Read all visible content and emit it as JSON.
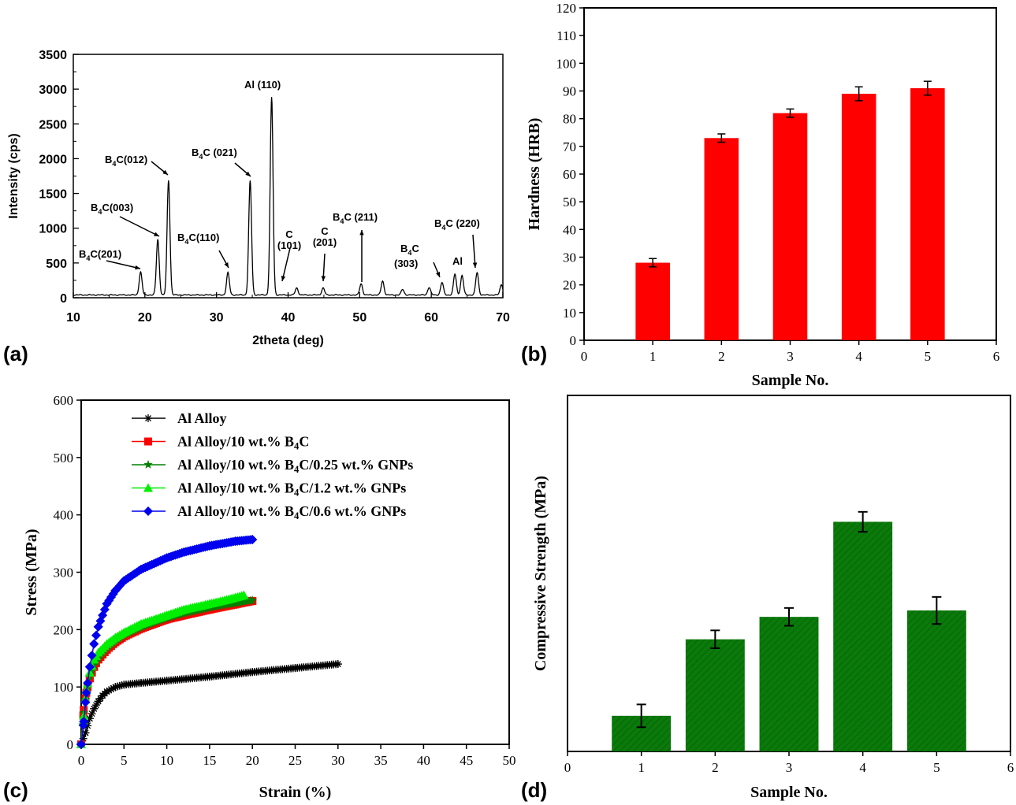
{
  "panel_labels": [
    "(a)",
    "(b)",
    "(c)",
    "(d)"
  ],
  "chart_data": [
    {
      "panel": "(a)",
      "type": "line",
      "xlabel": "2theta (deg)",
      "ylabel": "Intensity (cps)",
      "xlim": [
        10,
        70
      ],
      "ylim": [
        0,
        3500
      ],
      "xticks": [
        10,
        20,
        30,
        40,
        50,
        60,
        70
      ],
      "yticks": [
        0,
        500,
        1000,
        1500,
        2000,
        2500,
        3000,
        3500
      ],
      "peaks": [
        {
          "x": 19.4,
          "y": 370
        },
        {
          "x": 21.8,
          "y": 840
        },
        {
          "x": 23.3,
          "y": 1690
        },
        {
          "x": 31.6,
          "y": 360
        },
        {
          "x": 34.7,
          "y": 1680
        },
        {
          "x": 37.7,
          "y": 2880
        },
        {
          "x": 41.2,
          "y": 140
        },
        {
          "x": 44.9,
          "y": 140
        },
        {
          "x": 50.2,
          "y": 200
        },
        {
          "x": 53.2,
          "y": 240
        },
        {
          "x": 56.0,
          "y": 120
        },
        {
          "x": 59.7,
          "y": 150
        },
        {
          "x": 61.5,
          "y": 220
        },
        {
          "x": 63.3,
          "y": 340
        },
        {
          "x": 64.3,
          "y": 320
        },
        {
          "x": 66.4,
          "y": 360
        },
        {
          "x": 69.8,
          "y": 190
        }
      ],
      "baseline": 40,
      "annotations": [
        {
          "text": "B",
          "sub": "4",
          "rest": "C(201)"
        },
        {
          "text": "B",
          "sub": "4",
          "rest": "C(003)"
        },
        {
          "text": "B",
          "sub": "4",
          "rest": "C(012)"
        },
        {
          "text": "B",
          "sub": "4",
          "rest": "C(110)"
        },
        {
          "text": "B",
          "sub": "4",
          "rest": "C (021)"
        },
        {
          "text": "Al (110)",
          "sub": "",
          "rest": ""
        },
        {
          "text": "C",
          "sub": "",
          "rest": "(101)"
        },
        {
          "text": "C",
          "sub": "",
          "rest": "(201)"
        },
        {
          "text": "B",
          "sub": "4",
          "rest": "C (211)"
        },
        {
          "text": "B",
          "sub": "4",
          "rest": "C (303)"
        },
        {
          "text": "Al",
          "sub": "",
          "rest": ""
        },
        {
          "text": "B",
          "sub": "4",
          "rest": "C (220)"
        }
      ]
    },
    {
      "panel": "(b)",
      "type": "bar",
      "xlabel": "Sample No.",
      "ylabel": "Hardness (HRB)",
      "xlim": [
        0,
        6
      ],
      "ylim": [
        0,
        120
      ],
      "xticks": [
        0,
        1,
        2,
        3,
        4,
        5,
        6
      ],
      "yticks": [
        0,
        10,
        20,
        30,
        40,
        50,
        60,
        70,
        80,
        90,
        100,
        110,
        120
      ],
      "categories": [
        1,
        2,
        3,
        4,
        5
      ],
      "values": [
        28,
        73,
        82,
        89,
        91
      ],
      "errors": [
        1.5,
        1.5,
        1.5,
        2.5,
        2.5
      ],
      "color": "#ff0000"
    },
    {
      "panel": "(c)",
      "type": "line",
      "xlabel": "Strain (%)",
      "ylabel": "Stress (MPa)",
      "xlim": [
        0,
        50
      ],
      "ylim": [
        0,
        600
      ],
      "xticks": [
        0,
        5,
        10,
        15,
        20,
        25,
        30,
        35,
        40,
        45,
        50
      ],
      "yticks": [
        0,
        100,
        200,
        300,
        400,
        500,
        600
      ],
      "legend": "top-left",
      "series": [
        {
          "name": "Al Alloy",
          "color": "#000000",
          "marker": "asterisk",
          "x": [
            0,
            0.5,
            1,
            1.5,
            2,
            2.5,
            3,
            4,
            5,
            7,
            10,
            15,
            20,
            25,
            30
          ],
          "y": [
            0,
            20,
            45,
            62,
            75,
            85,
            92,
            100,
            104,
            107,
            111,
            118,
            126,
            133,
            140
          ]
        },
        {
          "name": "Al Alloy/10 wt.% B4C",
          "color": "#ff0000",
          "marker": "square",
          "x": [
            0,
            0.3,
            0.6,
            1,
            1.5,
            2,
            3,
            4,
            5,
            7,
            10,
            12,
            15,
            18,
            20
          ],
          "y": [
            0,
            60,
            90,
            115,
            135,
            148,
            165,
            178,
            188,
            202,
            218,
            225,
            235,
            244,
            250
          ]
        },
        {
          "name": "Al Alloy/10 wt.% B4C/0.25 wt.% GNPs",
          "color": "#008000",
          "marker": "star",
          "x": [
            0,
            0.3,
            0.6,
            1,
            1.5,
            2,
            3,
            4,
            5,
            7,
            10,
            12,
            15,
            18,
            20
          ],
          "y": [
            0,
            55,
            90,
            118,
            138,
            150,
            168,
            180,
            190,
            204,
            220,
            228,
            238,
            246,
            251
          ]
        },
        {
          "name": "Al Alloy/10 wt.% B4C/1.2 wt.% GNPs",
          "color": "#00ee00",
          "marker": "triangle",
          "x": [
            0,
            0.3,
            0.6,
            1,
            1.5,
            2,
            3,
            4,
            5,
            7,
            10,
            12,
            15,
            17,
            19
          ],
          "y": [
            0,
            50,
            95,
            125,
            148,
            160,
            175,
            186,
            195,
            210,
            225,
            235,
            245,
            252,
            260
          ]
        },
        {
          "name": "Al Alloy/10 wt.% B4C/0.6 wt.% GNPs",
          "color": "#0000ee",
          "marker": "diamond",
          "x": [
            0,
            0.3,
            0.6,
            1,
            1.5,
            2,
            3,
            4,
            5,
            7,
            10,
            12,
            15,
            18,
            20
          ],
          "y": [
            0,
            40,
            90,
            135,
            175,
            205,
            245,
            268,
            285,
            305,
            325,
            335,
            346,
            354,
            357
          ]
        }
      ],
      "legend_entries": [
        {
          "text": "Al Alloy",
          "sub": "",
          "rest": ""
        },
        {
          "text": "Al Alloy/10 wt.% B",
          "sub": "4",
          "rest": "C"
        },
        {
          "text": "Al Alloy/10 wt.% B",
          "sub": "4",
          "rest": "C/0.25 wt.% GNPs"
        },
        {
          "text": "Al Alloy/10 wt.% B",
          "sub": "4",
          "rest": "C/1.2 wt.% GNPs"
        },
        {
          "text": "Al Alloy/10 wt.% B",
          "sub": "4",
          "rest": "C/0.6 wt.% GNPs"
        }
      ]
    },
    {
      "panel": "(d)",
      "type": "bar",
      "xlabel": "Sample No.",
      "ylabel": "Compressive Strength (MPa)",
      "xlim": [
        0,
        6
      ],
      "ylim": [
        0,
        100
      ],
      "xticks": [
        0,
        1,
        2,
        3,
        4,
        5,
        6
      ],
      "categories": [
        1,
        2,
        3,
        4,
        5
      ],
      "values": [
        10,
        31.5,
        37.8,
        64.5,
        39.6
      ],
      "errors": [
        3.2,
        2.5,
        2.5,
        2.8,
        3.8
      ],
      "color": "#0a7a0a",
      "hatched": true
    }
  ]
}
